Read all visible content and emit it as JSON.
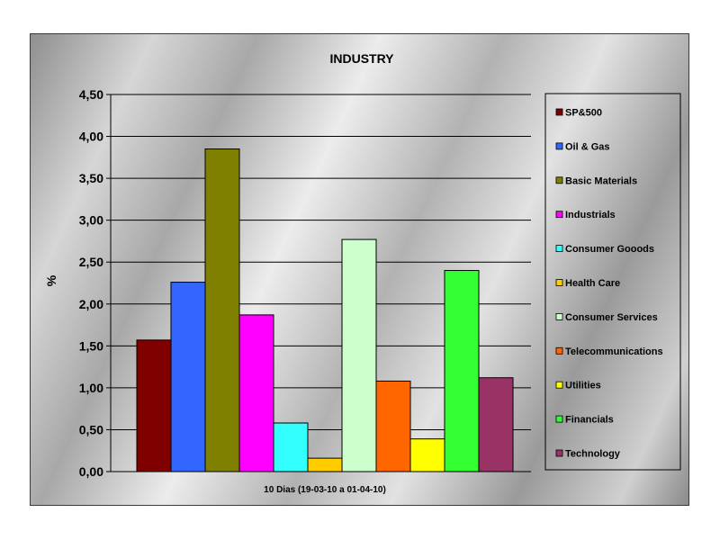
{
  "chart_data": {
    "type": "bar",
    "title": "INDUSTRY",
    "xlabel": "10 Dias (19-03-10 a 01-04-10)",
    "ylabel": "%",
    "ylim": [
      0,
      4.5
    ],
    "yticks": [
      "0,00",
      "0,50",
      "1,00",
      "1,50",
      "2,00",
      "2,50",
      "3,00",
      "3,50",
      "4,00",
      "4,50"
    ],
    "grid": true,
    "legend_position": "right",
    "categories": [
      "SP&500",
      "Oil & Gas",
      "Basic Materials",
      "Industrials",
      "Consumer Gooods",
      "Health Care",
      "Consumer Services",
      "Telecommunications",
      "Utilities",
      "Financials",
      "Technology"
    ],
    "values": [
      1.57,
      2.26,
      3.85,
      1.87,
      0.58,
      0.16,
      2.77,
      1.08,
      0.39,
      2.4,
      1.12
    ],
    "colors": [
      "#800000",
      "#3366FF",
      "#808000",
      "#FF00FF",
      "#33FFFF",
      "#FFCC00",
      "#CCFFCC",
      "#FF6600",
      "#FFFF00",
      "#33FF33",
      "#993366"
    ]
  }
}
